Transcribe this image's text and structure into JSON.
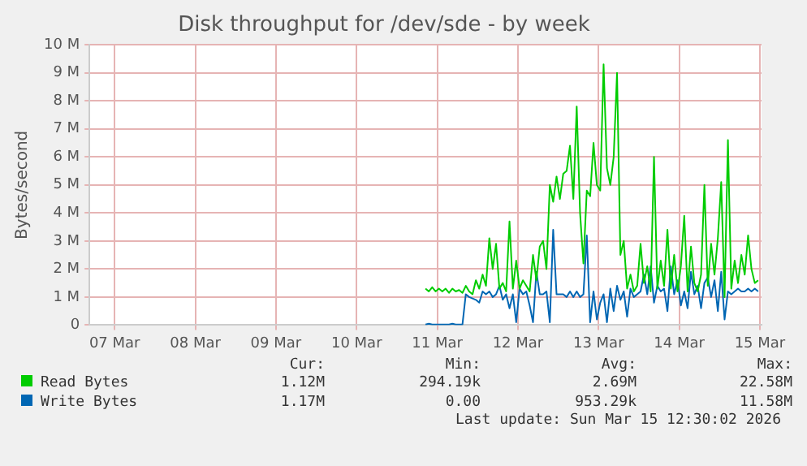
{
  "chart_data": {
    "type": "line",
    "title": "Disk throughput for /dev/sde - by week",
    "ylabel": "Bytes/second",
    "xlim": [
      "2026-03-07T04:30",
      "2026-03-15T12:30"
    ],
    "xticks": [
      {
        "value": "2026-03-07T12:00",
        "label": "07 Mar"
      },
      {
        "value": "2026-03-08T12:00",
        "label": "08 Mar"
      },
      {
        "value": "2026-03-09T12:00",
        "label": "09 Mar"
      },
      {
        "value": "2026-03-10T12:00",
        "label": "10 Mar"
      },
      {
        "value": "2026-03-11T12:00",
        "label": "11 Mar"
      },
      {
        "value": "2026-03-12T12:00",
        "label": "12 Mar"
      },
      {
        "value": "2026-03-13T12:00",
        "label": "13 Mar"
      },
      {
        "value": "2026-03-14T12:00",
        "label": "14 Mar"
      },
      {
        "value": "2026-03-15T12:00",
        "label": "15 Mar"
      }
    ],
    "ylim": [
      0,
      10
    ],
    "yticks": [
      {
        "value": 0,
        "label": "0"
      },
      {
        "value": 1,
        "label": "1 M"
      },
      {
        "value": 2,
        "label": "2 M"
      },
      {
        "value": 3,
        "label": "3 M"
      },
      {
        "value": 4,
        "label": "4 M"
      },
      {
        "value": 5,
        "label": "5 M"
      },
      {
        "value": 6,
        "label": "6 M"
      },
      {
        "value": 7,
        "label": "7 M"
      },
      {
        "value": 8,
        "label": "8 M"
      },
      {
        "value": 9,
        "label": "9 M"
      },
      {
        "value": 10,
        "label": "10 M"
      }
    ],
    "grid": true,
    "legend": "bottom",
    "marker": "none",
    "line_style": "solid",
    "x": [
      "2026-03-11T08:30",
      "2026-03-11T09:30",
      "2026-03-11T10:30",
      "2026-03-11T11:30",
      "2026-03-11T12:30",
      "2026-03-11T13:30",
      "2026-03-11T14:30",
      "2026-03-11T15:30",
      "2026-03-11T16:30",
      "2026-03-11T17:30",
      "2026-03-11T18:30",
      "2026-03-11T19:30",
      "2026-03-11T20:30",
      "2026-03-11T21:30",
      "2026-03-11T22:30",
      "2026-03-11T23:30",
      "2026-03-12T00:30",
      "2026-03-12T01:30",
      "2026-03-12T02:30",
      "2026-03-12T03:30",
      "2026-03-12T04:30",
      "2026-03-12T05:30",
      "2026-03-12T06:30",
      "2026-03-12T07:30",
      "2026-03-12T08:30",
      "2026-03-12T09:30",
      "2026-03-12T10:30",
      "2026-03-12T11:30",
      "2026-03-12T12:30",
      "2026-03-12T13:30",
      "2026-03-12T14:30",
      "2026-03-12T15:30",
      "2026-03-12T16:30",
      "2026-03-12T17:30",
      "2026-03-12T18:30",
      "2026-03-12T19:30",
      "2026-03-12T20:30",
      "2026-03-12T21:30",
      "2026-03-12T22:30",
      "2026-03-12T23:30",
      "2026-03-13T00:30",
      "2026-03-13T01:30",
      "2026-03-13T02:30",
      "2026-03-13T03:30",
      "2026-03-13T04:30",
      "2026-03-13T05:30",
      "2026-03-13T06:30",
      "2026-03-13T07:30",
      "2026-03-13T08:30",
      "2026-03-13T09:30",
      "2026-03-13T10:30",
      "2026-03-13T11:30",
      "2026-03-13T12:30",
      "2026-03-13T13:30",
      "2026-03-13T14:30",
      "2026-03-13T15:30",
      "2026-03-13T16:30",
      "2026-03-13T17:30",
      "2026-03-13T18:30",
      "2026-03-13T19:30",
      "2026-03-13T20:30",
      "2026-03-13T21:30",
      "2026-03-13T22:30",
      "2026-03-13T23:30",
      "2026-03-14T00:30",
      "2026-03-14T01:30",
      "2026-03-14T02:30",
      "2026-03-14T03:30",
      "2026-03-14T04:30",
      "2026-03-14T05:30",
      "2026-03-14T06:30",
      "2026-03-14T07:30",
      "2026-03-14T08:30",
      "2026-03-14T09:30",
      "2026-03-14T10:30",
      "2026-03-14T11:30",
      "2026-03-14T12:30",
      "2026-03-14T13:30",
      "2026-03-14T14:30",
      "2026-03-14T15:30",
      "2026-03-14T16:30",
      "2026-03-14T17:30",
      "2026-03-14T18:30",
      "2026-03-14T19:30",
      "2026-03-14T20:30",
      "2026-03-14T21:30",
      "2026-03-14T22:30",
      "2026-03-14T23:30",
      "2026-03-15T00:30",
      "2026-03-15T01:30",
      "2026-03-15T02:30",
      "2026-03-15T03:30",
      "2026-03-15T04:30",
      "2026-03-15T05:30",
      "2026-03-15T06:30",
      "2026-03-15T07:30",
      "2026-03-15T08:30",
      "2026-03-15T09:30",
      "2026-03-15T10:30",
      "2026-03-15T11:30"
    ],
    "series": [
      {
        "name": "Read Bytes",
        "color": "#00cc00",
        "values": [
          1.3,
          1.2,
          1.35,
          1.2,
          1.3,
          1.2,
          1.3,
          1.15,
          1.3,
          1.2,
          1.25,
          1.15,
          1.4,
          1.2,
          1.1,
          1.6,
          1.3,
          1.8,
          1.4,
          3.1,
          2.0,
          2.9,
          1.3,
          1.5,
          1.2,
          3.7,
          1.3,
          2.3,
          1.3,
          1.6,
          1.4,
          1.2,
          2.5,
          1.6,
          2.8,
          3.0,
          2.0,
          5.0,
          4.4,
          5.3,
          4.5,
          5.4,
          5.5,
          6.4,
          4.5,
          7.8,
          4.0,
          2.2,
          4.8,
          4.6,
          6.5,
          5.0,
          4.8,
          9.3,
          5.6,
          5.0,
          6.0,
          9.0,
          2.5,
          3.0,
          1.3,
          1.8,
          1.2,
          1.4,
          2.9,
          1.5,
          2.1,
          1.2,
          6.0,
          1.3,
          2.3,
          1.4,
          3.4,
          1.3,
          2.5,
          1.2,
          2.1,
          3.9,
          1.2,
          2.8,
          1.5,
          1.2,
          1.8,
          5.0,
          1.4,
          2.9,
          1.8,
          3.1,
          5.1,
          1.0,
          6.6,
          1.3,
          2.3,
          1.5,
          2.5,
          1.8,
          3.2,
          2.0,
          1.5,
          1.6
        ]
      },
      {
        "name": "Write Bytes",
        "color": "#0066b3",
        "values": [
          0.02,
          0.05,
          0.02,
          0.02,
          0.02,
          0.02,
          0.02,
          0.02,
          0.05,
          0.02,
          0.02,
          0.02,
          1.1,
          1.0,
          0.95,
          0.9,
          0.8,
          1.2,
          1.1,
          1.2,
          1.0,
          1.1,
          1.4,
          0.9,
          1.1,
          0.6,
          1.1,
          0.1,
          1.3,
          1.1,
          1.2,
          0.7,
          0.1,
          1.9,
          1.1,
          1.1,
          1.2,
          0.1,
          3.4,
          1.1,
          1.1,
          1.1,
          1.0,
          1.2,
          1.0,
          1.2,
          1.0,
          1.1,
          3.2,
          0.1,
          1.2,
          0.2,
          0.8,
          1.1,
          0.1,
          1.3,
          0.5,
          1.4,
          0.9,
          1.2,
          0.3,
          1.3,
          1.0,
          1.1,
          1.2,
          1.8,
          1.1,
          2.1,
          0.8,
          1.4,
          1.2,
          1.3,
          0.5,
          2.1,
          1.1,
          1.6,
          0.7,
          1.2,
          0.6,
          1.9,
          1.1,
          1.4,
          0.6,
          1.5,
          1.7,
          1.0,
          1.6,
          0.5,
          1.9,
          0.2,
          1.2,
          1.1,
          1.2,
          1.3,
          1.2,
          1.2,
          1.3,
          1.2,
          1.3,
          1.2
        ]
      }
    ],
    "annotations": [
      "Cur:",
      "Min:",
      "Avg:",
      "Max:",
      "1.12M",
      "294.19k",
      "2.69M",
      "22.58M",
      "1.17M",
      "0.00",
      "953.29k",
      "11.58M",
      "Last update: Sun Mar 15 12:30:02 2026"
    ]
  }
}
